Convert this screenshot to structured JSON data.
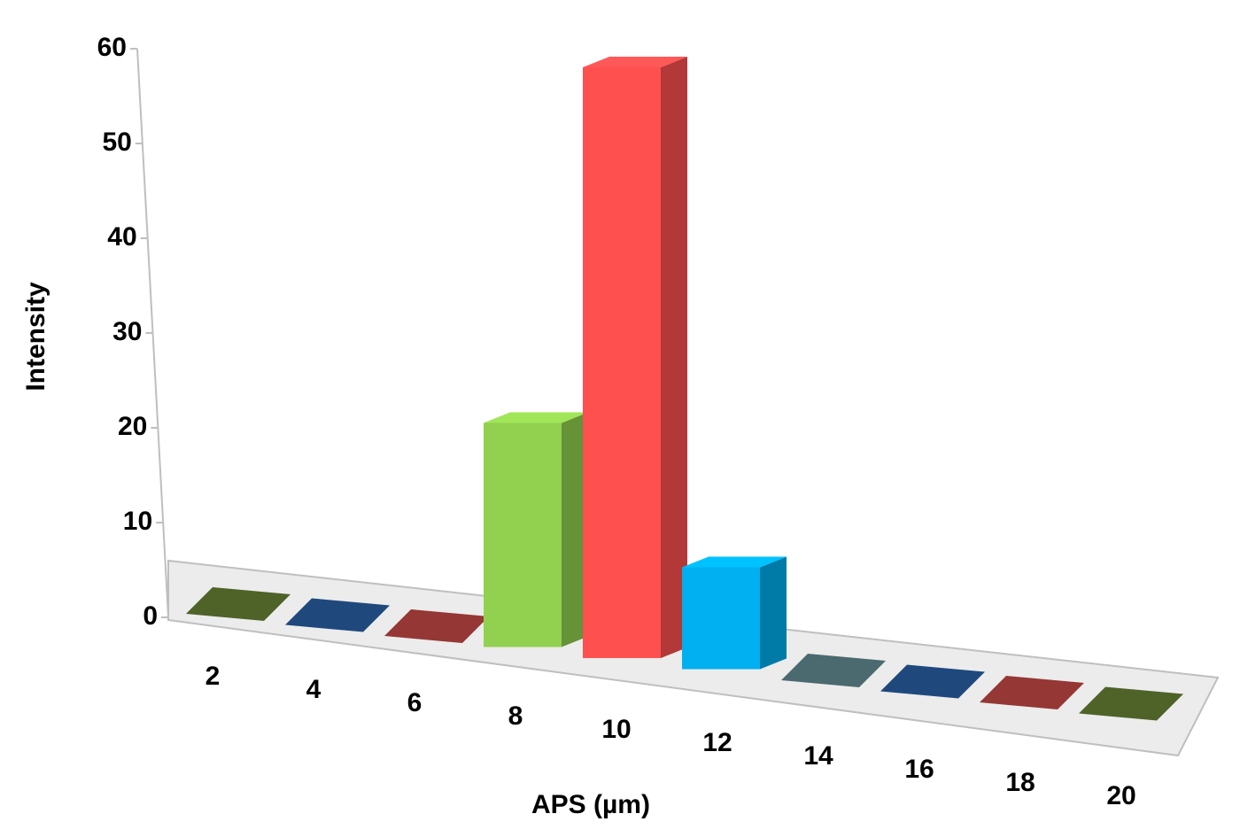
{
  "chart_data": {
    "type": "bar3d",
    "x_label": "APS (µm)",
    "y_label": "Intensity",
    "categories": [
      "2",
      "4",
      "6",
      "8",
      "10",
      "12",
      "14",
      "16",
      "18",
      "20"
    ],
    "values": [
      0,
      0,
      0,
      22,
      58,
      10,
      0,
      0,
      0,
      0
    ],
    "colors": [
      "#4f6228",
      "#1f497d",
      "#953735",
      "#92d050",
      "#ff5050",
      "#00b0f0",
      "#4a6a70",
      "#1f497d",
      "#953735",
      "#4f6228"
    ],
    "ylim": [
      0,
      60
    ],
    "yticks": [
      0,
      10,
      20,
      30,
      40,
      50,
      60
    ]
  }
}
